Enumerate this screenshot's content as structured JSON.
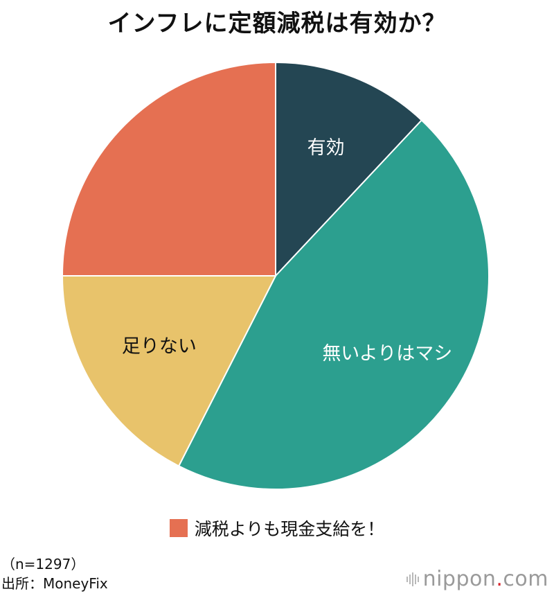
{
  "chart_data": {
    "type": "pie",
    "title": "インフレに定額減税は有効か？",
    "start_angle_deg": 0,
    "direction": "clockwise",
    "slices": [
      {
        "label": "有効",
        "value": 12,
        "color": "#244653",
        "label_color": "#ffffff"
      },
      {
        "label": "無いよりはマシ",
        "value": 45.5,
        "color": "#2c9f8f",
        "label_color": "#ffffff"
      },
      {
        "label": "足りない",
        "value": 17.5,
        "color": "#e8c36b",
        "label_color": "#111111"
      },
      {
        "label": "",
        "value": 25,
        "color": "#e57052",
        "label_color": "#ffffff"
      }
    ],
    "legend": [
      {
        "label": "減税よりも現金支給を！",
        "color": "#e57052"
      }
    ],
    "legend_position": "bottom"
  },
  "notes": {
    "sample": "（n=1297）",
    "source": "出所：MoneyFix"
  },
  "brand": {
    "name": "nippon",
    "dot": ".",
    "suffix": "com"
  }
}
